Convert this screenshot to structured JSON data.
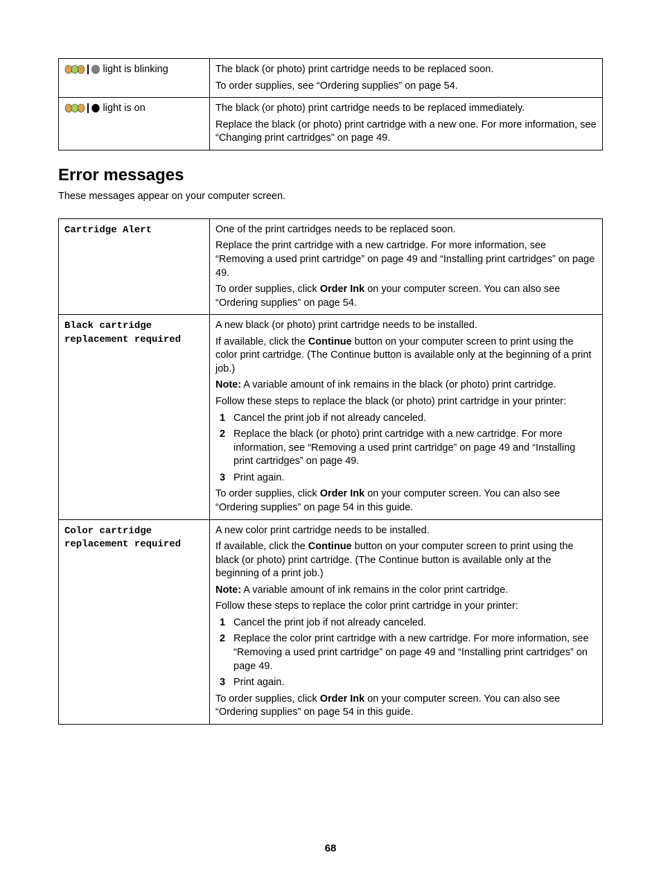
{
  "indicator_table": {
    "rows": [
      {
        "label": "light is blinking",
        "icon": {
          "colors": [
            "#d8a24a",
            "#9ccf63",
            "#d8a24a"
          ],
          "last_color": "#808080"
        },
        "desc": [
          {
            "text": "The black (or photo) print cartridge needs to be replaced soon."
          },
          {
            "text": "To order supplies, see “Ordering supplies” on page 54."
          }
        ]
      },
      {
        "label": "light is on",
        "icon": {
          "colors": [
            "#d8a24a",
            "#9ccf63",
            "#d8a24a"
          ],
          "last_color": "#000000"
        },
        "desc": [
          {
            "text": "The black (or photo) print cartridge needs to be replaced immediately."
          },
          {
            "text": "Replace the black (or photo) print cartridge with a new one. For more information, see “Changing print cartridges” on page 49."
          }
        ]
      }
    ]
  },
  "heading": "Error messages",
  "intro": "These messages appear on your computer screen.",
  "error_table": {
    "rows": [
      {
        "name": "Cartridge Alert",
        "content": [
          {
            "type": "p",
            "text": "One of the print cartridges needs to be replaced soon."
          },
          {
            "type": "p",
            "text": "Replace the print cartridge with a new cartridge. For more information, see “Removing a used print cartridge” on page 49 and “Installing print cartridges” on page 49."
          },
          {
            "type": "p_order",
            "pre": "To order supplies, click ",
            "bold": "Order Ink",
            "post": " on your computer screen. You can also see “Ordering supplies” on page 54."
          }
        ]
      },
      {
        "name": "Black cartridge replacement required",
        "content": [
          {
            "type": "p",
            "text": "A new black (or photo) print cartridge needs to be installed."
          },
          {
            "type": "p_cont",
            "pre": "If available, click the ",
            "bold": "Continue",
            "post": " button on your computer screen to print using the color print cartridge. (The Continue button is available only at the beginning of a print job.)"
          },
          {
            "type": "p_note",
            "bold": "Note:",
            "post": " A variable amount of ink remains in the black (or photo) print cartridge."
          },
          {
            "type": "p",
            "text": "Follow these steps to replace the black (or photo) print cartridge in your printer:"
          },
          {
            "type": "steps",
            "items": [
              "Cancel the print job if not already canceled.",
              "Replace the black (or photo) print cartridge with a new cartridge. For more information, see “Removing a used print cartridge” on page 49 and “Installing print cartridges” on page 49.",
              "Print again."
            ]
          },
          {
            "type": "p_order",
            "pre": "To order supplies, click ",
            "bold": "Order Ink",
            "post": " on your computer screen. You can also see “Ordering supplies” on page 54 in this guide."
          }
        ]
      },
      {
        "name": "Color cartridge replacement required",
        "content": [
          {
            "type": "p",
            "text": "A new color print cartridge needs to be installed."
          },
          {
            "type": "p_cont",
            "pre": "If available, click the ",
            "bold": "Continue",
            "post": " button on your computer screen to print using the black (or photo) print cartridge. (The Continue button is available only at the beginning of a print job.)"
          },
          {
            "type": "p_note",
            "bold": "Note:",
            "post": " A variable amount of ink remains in the color print cartridge."
          },
          {
            "type": "p",
            "text": "Follow these steps to replace the color print cartridge in your printer:"
          },
          {
            "type": "steps",
            "items": [
              "Cancel the print job if not already canceled.",
              "Replace the color print cartridge with a new cartridge. For more information, see “Removing a used print cartridge” on page 49 and “Installing print cartridges” on page 49.",
              "Print again."
            ]
          },
          {
            "type": "p_order",
            "pre": "To order supplies, click ",
            "bold": "Order Ink",
            "post": " on your computer screen. You can also see “Ordering supplies” on page 54 in this guide."
          }
        ]
      }
    ]
  },
  "page_number": "68"
}
